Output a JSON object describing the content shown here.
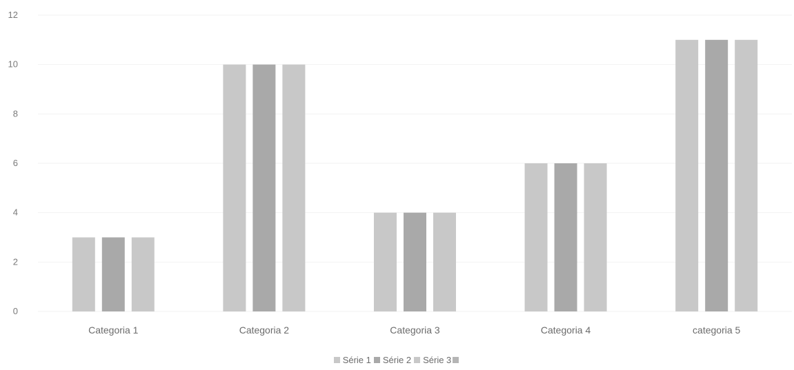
{
  "chart_data": {
    "type": "bar",
    "categories": [
      "Categoria 1",
      "Categoria 2",
      "Categoria 3",
      "Categoria 4",
      "categoria 5"
    ],
    "series": [
      {
        "name": "Série 1",
        "values": [
          3,
          10,
          4,
          6,
          11
        ],
        "color": "#c8c8c8"
      },
      {
        "name": "Série 2",
        "values": [
          3,
          10,
          4,
          6,
          11
        ],
        "color": "#a9a9a9"
      },
      {
        "name": "Série 3",
        "values": [
          3,
          10,
          4,
          6,
          11
        ],
        "color": "#c8c8c8"
      }
    ],
    "legend_extra_swatch_color": "#b5b5b5",
    "ylim": [
      0,
      12
    ],
    "yticks": [
      0,
      2,
      4,
      6,
      8,
      10,
      12
    ],
    "grid": true,
    "legend_position": "bottom",
    "title": "",
    "xlabel": "",
    "ylabel": ""
  }
}
